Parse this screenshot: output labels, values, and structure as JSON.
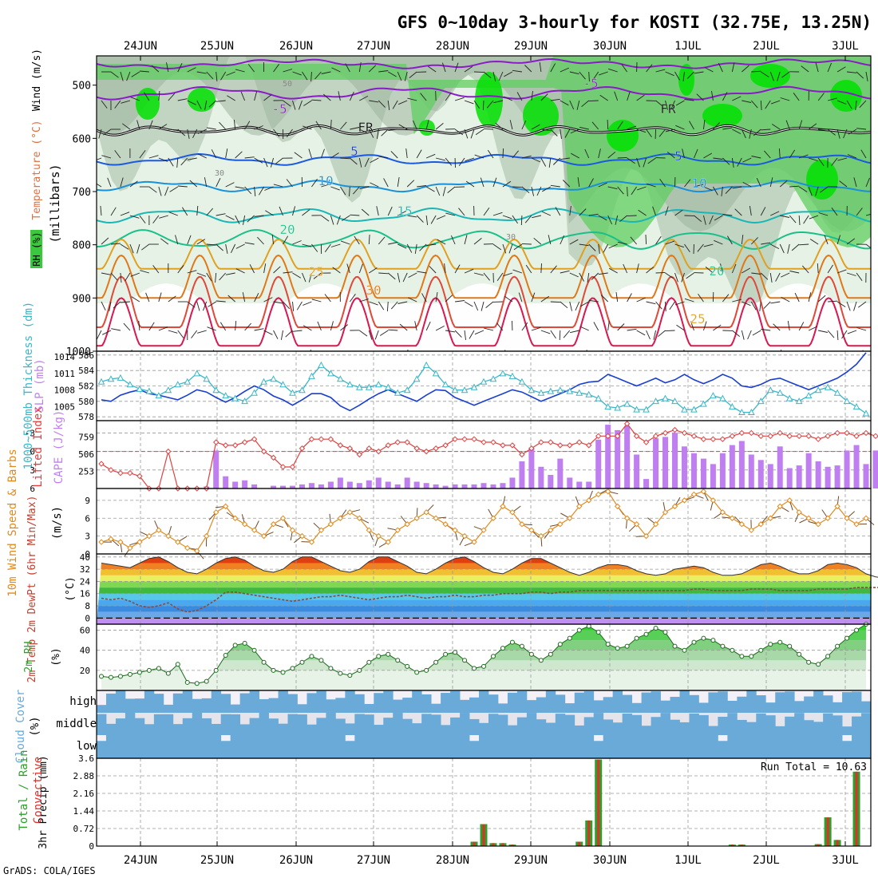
{
  "title": "GFS 0~10day 3-hourly for KOSTI (32.75E, 13.25N)",
  "footer": "GrADS: COLA/IGES",
  "dates": [
    "24JUN",
    "25JUN",
    "26JUN",
    "27JUN",
    "28JUN",
    "29JUN",
    "30JUN",
    "1JUL",
    "2JUL",
    "3JUL"
  ],
  "colors": {
    "rh_light": "#e6f2e6",
    "rh_mid": "#c2d4c2",
    "rh_dark": "#9fb59f",
    "rh_green": "#5fcf5f",
    "rh_bright": "#00e000",
    "thickness": "#1a3fd0",
    "slp": "#3ab6c8",
    "cape": "#c07ff0",
    "lifted": "#e04040",
    "wind_speed": "#e08a1e",
    "barb": "#6b4a2a",
    "dewpt": "#8b4a3a",
    "rh2m": "#2aa02a",
    "cloud": "#6aaad8",
    "cloud_bg": "#f4f0f8",
    "precip_total": "#2ca02c",
    "precip_conv": "#e0302a",
    "grid": "#999999"
  },
  "panels": {
    "upper": {
      "ylabel_parts": [
        "RH (%)",
        "Temperature (°C)",
        "Wind (m/s)"
      ],
      "ylabel_unit": "(millibars)",
      "yticks": [
        500,
        600,
        700,
        800,
        900,
        1000
      ],
      "contour_labels": [
        "-5",
        "-5",
        "FR",
        "FR",
        "5",
        "5",
        "10",
        "10",
        "15",
        "20",
        "20",
        "25",
        "25",
        "30",
        "50",
        "30",
        "30"
      ]
    },
    "thickness": {
      "ylabel_left": "1000~500mb Thickness (dm)",
      "ylabel_right": "SLP (mb)",
      "left_ticks": [
        578,
        580,
        582,
        584,
        586
      ],
      "right_ticks": [
        1005,
        1008,
        1011,
        1014
      ]
    },
    "cape": {
      "ylabel_left": "Lifted Index",
      "ylabel_right": "CAPE (J/kg)",
      "li_ticks": [
        -3,
        0,
        3,
        6
      ],
      "cape_ticks": [
        253,
        506,
        759
      ]
    },
    "wind": {
      "ylabel": "10m Wind Speed & Barbs",
      "unit": "(m/s)",
      "yticks": [
        0,
        3,
        6,
        9
      ]
    },
    "temp": {
      "ylabel": "2m Temp 2m DewPt (6hr Min/Max)",
      "unit": "(°C)",
      "yticks": [
        0,
        8,
        16,
        24,
        32,
        40
      ]
    },
    "rh": {
      "ylabel": "2m RH",
      "unit": "(%)",
      "yticks": [
        20,
        40,
        60
      ]
    },
    "cloud": {
      "ylabel": "Cloud Cover",
      "unit": "(%)",
      "levels": [
        "high",
        "middle",
        "low"
      ]
    },
    "precip": {
      "ylabel_total": "Total / Rain",
      "ylabel_conv": "Convective",
      "ylabel": "3hr Precip (mm)",
      "yticks": [
        "0",
        "0.72",
        "1.44",
        "2.16",
        "2.88",
        "3.6"
      ],
      "run_total_label": "Run Total",
      "run_total": "10.63"
    }
  },
  "chart_data": [
    {
      "type": "line",
      "panel": "1000-500mb thickness and SLP",
      "x_units": "3-hourly steps from 23JUN 18Z (index 0..80)",
      "series": [
        {
          "name": "1000~500mb Thickness (dm)",
          "values": [
            580.2,
            580.0,
            580.8,
            581.2,
            581.5,
            581.0,
            580.8,
            580.5,
            580.2,
            580.8,
            581.5,
            581.2,
            580.5,
            579.9,
            580.5,
            581.3,
            582.0,
            581.5,
            580.7,
            580.2,
            579.5,
            580.2,
            581.0,
            581.0,
            580.5,
            579.4,
            578.8,
            579.5,
            580.3,
            581.0,
            581.5,
            581.0,
            580.5,
            580.0,
            580.8,
            581.5,
            581.4,
            580.5,
            580.0,
            579.5,
            580.0,
            580.5,
            581.0,
            581.5,
            581.2,
            580.6,
            580.0,
            580.5,
            581.0,
            581.5,
            582.2,
            582.5,
            582.6,
            583.5,
            583.0,
            582.5,
            582.0,
            582.5,
            583.0,
            582.4,
            582.8,
            583.5,
            582.8,
            582.3,
            582.8,
            583.5,
            583.0,
            582.0,
            581.8,
            582.2,
            582.8,
            583.0,
            582.5,
            582.0,
            581.5,
            582.0,
            582.5,
            583.0,
            583.8,
            584.8,
            586.3
          ]
        },
        {
          "name": "SLP (mb)",
          "values": [
            1009.5,
            1010.0,
            1010.2,
            1009.0,
            1008.2,
            1007.8,
            1007.0,
            1008.0,
            1009.0,
            1009.5,
            1011.0,
            1010.0,
            1008.0,
            1007.0,
            1006.5,
            1006.0,
            1007.5,
            1009.5,
            1010.0,
            1009.0,
            1007.5,
            1008.0,
            1010.5,
            1012.5,
            1011.0,
            1010.0,
            1009.0,
            1008.5,
            1008.5,
            1009.0,
            1008.5,
            1007.5,
            1008.0,
            1010.0,
            1012.5,
            1011.0,
            1009.0,
            1008.0,
            1008.0,
            1008.5,
            1009.5,
            1010.0,
            1011.0,
            1010.5,
            1009.5,
            1008.0,
            1007.5,
            1007.8,
            1008.0,
            1007.8,
            1007.5,
            1007.2,
            1006.5,
            1005.0,
            1004.8,
            1005.5,
            1004.5,
            1004.5,
            1006.0,
            1006.5,
            1006.0,
            1004.5,
            1004.5,
            1005.5,
            1007.0,
            1006.5,
            1005.0,
            1004.0,
            1004.0,
            1006.0,
            1008.0,
            1007.5,
            1006.5,
            1006.0,
            1007.0,
            1008.0,
            1008.5,
            1007.5,
            1006.0,
            1005.0,
            1003.8
          ]
        }
      ],
      "ylim_left": [
        577.5,
        586.5
      ],
      "ylim_right": [
        1002.5,
        1015
      ]
    },
    {
      "type": "bar",
      "panel": "CAPE and Lifted Index",
      "series": [
        {
          "name": "CAPE (J/kg)",
          "values": [
            0,
            0,
            0,
            0,
            0,
            0,
            0,
            0,
            0,
            0,
            0,
            30,
            560,
            180,
            100,
            120,
            60,
            0,
            40,
            40,
            40,
            60,
            80,
            60,
            100,
            160,
            100,
            80,
            120,
            160,
            100,
            60,
            160,
            100,
            80,
            60,
            40,
            60,
            60,
            60,
            80,
            60,
            80,
            160,
            400,
            600,
            320,
            200,
            440,
            160,
            100,
            100,
            720,
            940,
            860,
            920,
            500,
            140,
            740,
            760,
            820,
            620,
            520,
            440,
            360,
            520,
            640,
            700,
            500,
            420,
            360,
            620,
            300,
            340,
            520,
            400,
            320,
            340,
            560,
            640,
            360,
            560,
            340
          ]
        },
        {
          "name": "Lifted Index",
          "values": [
            2.0,
            3.0,
            3.5,
            3.5,
            4.0,
            6.0,
            6.0,
            0.0,
            6.0,
            6.0,
            6.0,
            6.0,
            -1.5,
            -1.0,
            -1.0,
            -1.5,
            -2.0,
            0.0,
            1.0,
            2.5,
            2.5,
            -0.5,
            -2.0,
            -2.0,
            -2.0,
            -1.0,
            -0.5,
            0.5,
            -0.5,
            0.0,
            -1.0,
            -1.5,
            -1.5,
            -0.5,
            0.0,
            -0.5,
            -1.0,
            -2.0,
            -2.0,
            -2.0,
            -1.5,
            -1.5,
            -1.0,
            -1.0,
            0.5,
            -0.5,
            -1.5,
            -1.5,
            -1.0,
            -1.0,
            -1.5,
            -1.0,
            -2.5,
            -2.5,
            -2.5,
            -4.5,
            -2.5,
            -1.5,
            -2.5,
            -3.0,
            -3.5,
            -3.0,
            -2.5,
            -2.0,
            -2.0,
            -2.0,
            -2.5,
            -3.0,
            -3.0,
            -2.5,
            -2.5,
            -3.0,
            -2.5,
            -2.5,
            -2.5,
            -2.0,
            -2.5,
            -3.0,
            -3.0,
            -2.5,
            -3.0,
            -2.5,
            -2.0
          ]
        }
      ],
      "cape_ylim": [
        0,
        1000
      ],
      "li_ylim": [
        6,
        -5
      ]
    },
    {
      "type": "line",
      "panel": "10m Wind Speed & Barbs",
      "series": [
        {
          "name": "10m Wind Speed (m/s)",
          "values": [
            2,
            2.5,
            2,
            1,
            2,
            3,
            4,
            3,
            2,
            1,
            0.5,
            3,
            7,
            8,
            6,
            5,
            4,
            3,
            5,
            6,
            4,
            3,
            2,
            4,
            5,
            6,
            7,
            6,
            4,
            3,
            2,
            4,
            5,
            6,
            7,
            6,
            5,
            4,
            3,
            2,
            4,
            6,
            8,
            7,
            5,
            4,
            3,
            4,
            5,
            6,
            8,
            9,
            10,
            10.5,
            8,
            6,
            5,
            3,
            5,
            7,
            8,
            9,
            10,
            10.5,
            9,
            7,
            6,
            5,
            4,
            5,
            6,
            8,
            9,
            7,
            6,
            5,
            6,
            8,
            6,
            5,
            6,
            4,
            5,
            6,
            7,
            6,
            5,
            6,
            8,
            9,
            10
          ]
        }
      ],
      "ylim": [
        0,
        11
      ]
    },
    {
      "type": "area",
      "panel": "2m Temp, 2m DewPt (6hr Min/Max)",
      "series": [
        {
          "name": "2m Temp (°C)",
          "values": [
            36,
            35,
            34,
            33,
            36,
            39,
            40,
            37,
            33,
            30,
            29,
            32,
            36,
            39,
            40,
            38,
            34,
            31,
            30,
            32,
            37,
            40,
            40,
            37,
            34,
            31,
            30,
            32,
            37,
            40,
            40,
            37,
            34,
            30,
            29,
            32,
            36,
            39,
            40,
            37,
            33,
            30,
            29,
            32,
            36,
            39,
            39,
            36,
            33,
            30,
            28,
            30,
            33,
            35,
            35,
            34,
            31,
            29,
            28,
            29,
            32,
            33,
            34,
            33,
            30,
            28,
            28,
            29,
            32,
            35,
            36,
            34,
            31,
            29,
            29,
            31,
            35,
            36,
            35,
            33,
            29,
            27,
            26
          ]
        },
        {
          "name": "2m DewPt (°C)",
          "values": [
            13,
            12,
            13,
            11,
            8,
            7,
            8,
            10,
            6,
            4,
            5,
            8,
            12,
            17,
            17,
            16,
            15,
            14,
            13,
            12,
            11,
            12,
            13,
            14,
            14,
            15,
            14,
            13,
            12,
            13,
            14,
            14,
            15,
            14,
            13,
            14,
            14,
            15,
            14,
            14,
            15,
            15,
            16,
            16,
            16,
            17,
            17,
            16,
            17,
            17,
            18,
            18,
            18,
            18,
            18,
            18,
            18,
            18,
            18,
            18,
            18,
            18,
            19,
            19,
            18,
            18,
            18,
            18,
            19,
            19,
            19,
            18,
            18,
            18,
            18,
            19,
            19,
            19,
            19,
            20,
            20,
            20,
            20
          ]
        }
      ],
      "ylim": [
        -4,
        42
      ]
    },
    {
      "type": "area",
      "panel": "2m RH",
      "series": [
        {
          "name": "2m RH (%)",
          "values": [
            14,
            13,
            14,
            16,
            18,
            20,
            22,
            17,
            26,
            8,
            7,
            9,
            20,
            35,
            45,
            47,
            40,
            28,
            20,
            18,
            22,
            28,
            34,
            30,
            22,
            17,
            15,
            20,
            28,
            34,
            36,
            30,
            24,
            18,
            20,
            28,
            36,
            38,
            30,
            22,
            24,
            34,
            42,
            48,
            44,
            36,
            30,
            36,
            46,
            52,
            60,
            64,
            58,
            46,
            42,
            44,
            52,
            56,
            62,
            58,
            44,
            40,
            48,
            52,
            50,
            44,
            40,
            34,
            34,
            40,
            46,
            48,
            44,
            36,
            28,
            26,
            34,
            44,
            52,
            60,
            66
          ]
        }
      ],
      "ylim": [
        0,
        66
      ]
    },
    {
      "type": "bar",
      "panel": "3hr Precip",
      "x_units": "3-hourly step index",
      "series": [
        {
          "name": "Total / Rain (mm)",
          "x": [
            39,
            40,
            41,
            42,
            43,
            50,
            51,
            52,
            66,
            67,
            75,
            76,
            77,
            79
          ],
          "values": [
            0.18,
            0.9,
            0.12,
            0.12,
            0.06,
            0.18,
            1.05,
            3.55,
            0.06,
            0.06,
            0.08,
            1.18,
            0.25,
            3.05
          ]
        },
        {
          "name": "Convective (mm)",
          "x": [
            39,
            40,
            41,
            42,
            43,
            50,
            51,
            52,
            66,
            67,
            75,
            76,
            77,
            79
          ],
          "values": [
            0.18,
            0.9,
            0.12,
            0.12,
            0.06,
            0.18,
            1.05,
            3.55,
            0.06,
            0.06,
            0.08,
            1.18,
            0.25,
            3.05
          ]
        }
      ],
      "ylim": [
        0,
        3.6
      ]
    }
  ]
}
